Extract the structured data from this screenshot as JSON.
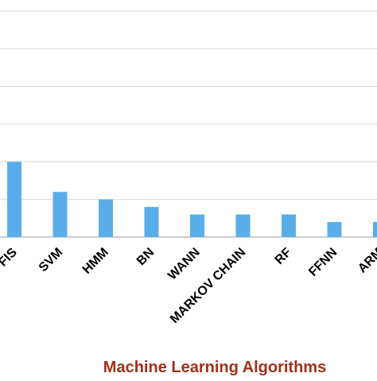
{
  "chart_data": {
    "type": "bar",
    "title": "",
    "xlabel": "Machine Learning Algorithms",
    "ylabel": "",
    "categories": [
      "ANFIS",
      "SVM",
      "HMM",
      "BN",
      "WANN",
      "MARKOV CHAIN",
      "RF",
      "FFNN",
      "ARM"
    ],
    "visible_category_text": [
      "FIS",
      "SVM",
      "HMM",
      "BN",
      "WANN",
      "MARKOV CHAIN",
      "RF",
      "FFNN",
      "ARM"
    ],
    "series": [
      {
        "values": [
          20,
          12,
          10,
          8,
          6,
          6,
          6,
          4,
          4
        ]
      }
    ],
    "ylim": [
      0,
      60
    ],
    "y_gridlines": [
      0,
      10,
      20,
      30,
      40,
      50,
      60
    ],
    "grid": true,
    "legend": "none",
    "bar_color": "#5aaee8",
    "grid_color": "#d9d9d9",
    "xlabel_color": "#a0301a"
  }
}
